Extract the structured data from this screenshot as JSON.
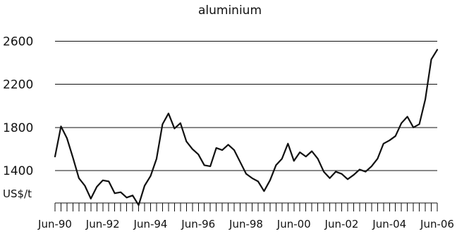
{
  "chart_data": {
    "type": "line",
    "title": "aluminium",
    "unit_label": "US$/t",
    "ylim": [
      1100,
      2700
    ],
    "yticks": [
      1400,
      1800,
      2200,
      2600
    ],
    "grid": "horizontal",
    "x_tick_labels": [
      "Jun-90",
      "Jun-92",
      "Jun-94",
      "Jun-96",
      "Jun-98",
      "Jun-00",
      "Jun-02",
      "Jun-04",
      "Jun-06"
    ],
    "x": [
      "Jun-90",
      "Sep-90",
      "Dec-90",
      "Mar-91",
      "Jun-91",
      "Sep-91",
      "Dec-91",
      "Mar-92",
      "Jun-92",
      "Sep-92",
      "Dec-92",
      "Mar-93",
      "Jun-93",
      "Sep-93",
      "Dec-93",
      "Mar-94",
      "Jun-94",
      "Sep-94",
      "Dec-94",
      "Mar-95",
      "Jun-95",
      "Sep-95",
      "Dec-95",
      "Mar-96",
      "Jun-96",
      "Sep-96",
      "Dec-96",
      "Mar-97",
      "Jun-97",
      "Sep-97",
      "Dec-97",
      "Mar-98",
      "Jun-98",
      "Sep-98",
      "Dec-98",
      "Mar-99",
      "Jun-99",
      "Sep-99",
      "Dec-99",
      "Mar-00",
      "Jun-00",
      "Sep-00",
      "Dec-00",
      "Mar-01",
      "Jun-01",
      "Sep-01",
      "Dec-01",
      "Mar-02",
      "Jun-02",
      "Sep-02",
      "Dec-02",
      "Mar-03",
      "Jun-03",
      "Sep-03",
      "Dec-03",
      "Mar-04",
      "Jun-04",
      "Sep-04",
      "Dec-04",
      "Mar-05",
      "Jun-05",
      "Sep-05",
      "Dec-05",
      "Mar-06",
      "Jun-06"
    ],
    "series": [
      {
        "color": "#111111",
        "values": [
          1530,
          1810,
          1700,
          1520,
          1330,
          1260,
          1140,
          1250,
          1310,
          1300,
          1190,
          1200,
          1150,
          1170,
          1080,
          1260,
          1350,
          1510,
          1830,
          1930,
          1790,
          1840,
          1670,
          1600,
          1550,
          1450,
          1440,
          1610,
          1590,
          1640,
          1590,
          1480,
          1370,
          1330,
          1300,
          1210,
          1310,
          1450,
          1510,
          1650,
          1490,
          1570,
          1530,
          1580,
          1510,
          1390,
          1330,
          1390,
          1370,
          1320,
          1360,
          1410,
          1390,
          1440,
          1510,
          1650,
          1680,
          1720,
          1840,
          1900,
          1800,
          1830,
          2060,
          2430,
          2520
        ]
      }
    ]
  }
}
